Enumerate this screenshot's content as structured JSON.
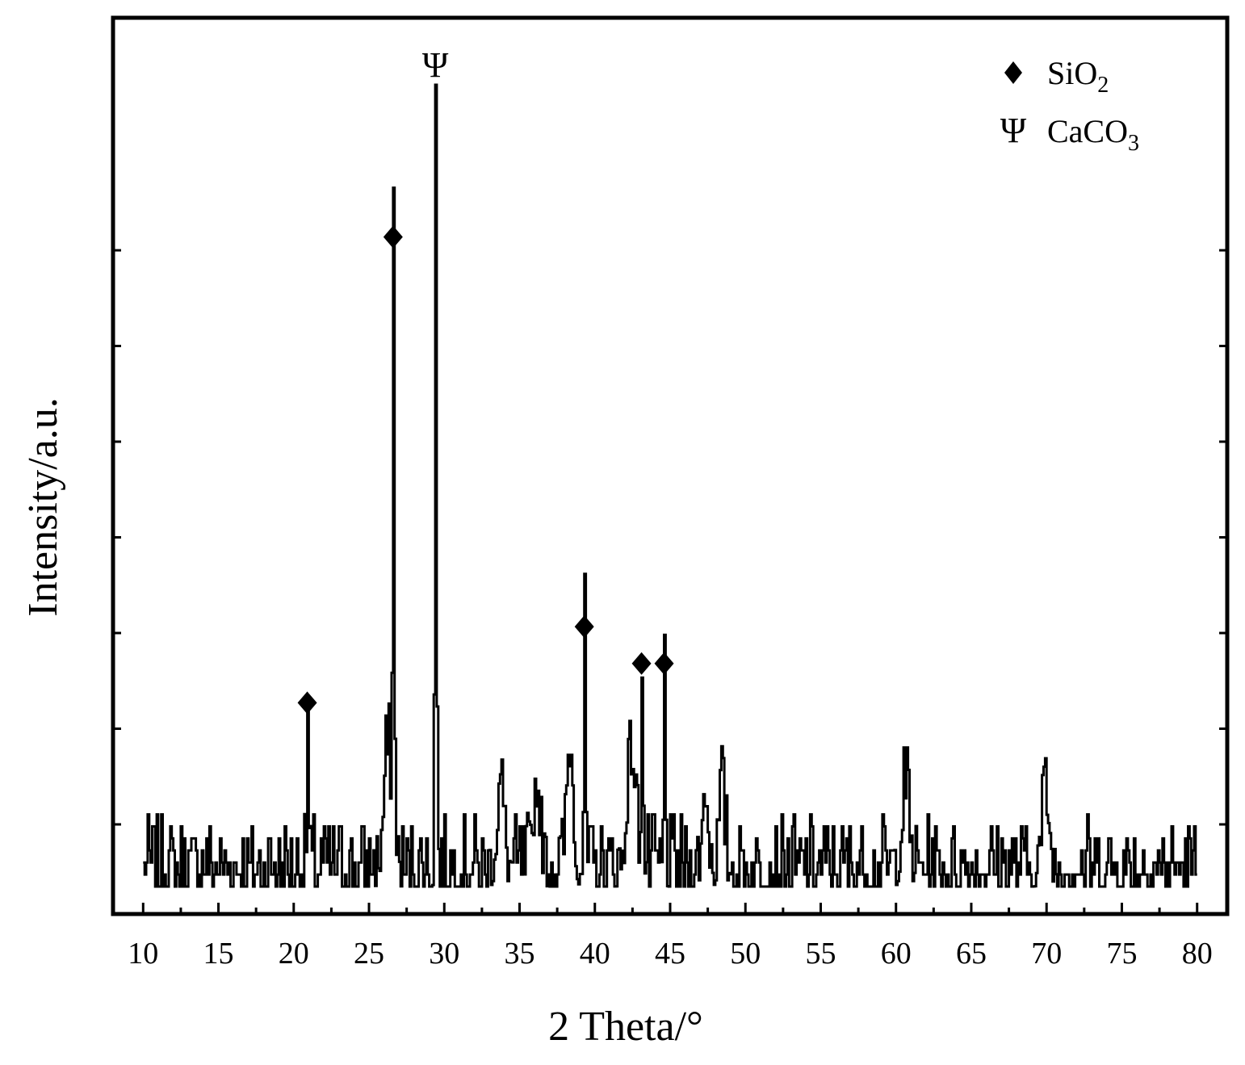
{
  "chart_data": {
    "type": "line",
    "title": "",
    "xlabel": "2 Theta/°",
    "ylabel": "Intensity/a.u.",
    "xlim": [
      8,
      82
    ],
    "ylim": [
      0,
      100
    ],
    "x_ticks": [
      10,
      15,
      20,
      25,
      30,
      35,
      40,
      45,
      50,
      55,
      60,
      65,
      70,
      75,
      80
    ],
    "x_tick_labels": [
      "10",
      "15",
      "20",
      "25",
      "30",
      "35",
      "40",
      "45",
      "50",
      "55",
      "60",
      "65",
      "70",
      "75",
      "80"
    ],
    "y_tick_labels_shown": false,
    "grid": false,
    "legend_position": "top-right",
    "legend": [
      {
        "symbol": "diamond",
        "label": "SiO",
        "subscript": "2"
      },
      {
        "symbol": "psi",
        "label": "CaCO",
        "subscript": "3"
      }
    ],
    "peaks": [
      {
        "x": 20.9,
        "y": 20.5,
        "phase": "SiO2"
      },
      {
        "x": 26.6,
        "y": 78.6,
        "phase": "SiO2"
      },
      {
        "x": 29.4,
        "y": 100,
        "phase": "CaCO3"
      },
      {
        "x": 39.3,
        "y": 30.0,
        "phase": "SiO2"
      },
      {
        "x": 43.1,
        "y": 25.4,
        "phase": "SiO2"
      },
      {
        "x": 44.6,
        "y": 25.4,
        "phase": "SiO2"
      }
    ],
    "peak_marker_symbols": {
      "SiO2": "♦",
      "CaCO3": "Ψ"
    },
    "series": [
      {
        "baseline": 0,
        "noise_amplitude": 9,
        "broad_features": [
          {
            "x": 26.2,
            "y": 15,
            "w": 0.35
          },
          {
            "x": 38.3,
            "y": 15,
            "w": 0.3
          },
          {
            "x": 42.4,
            "y": 14,
            "w": 0.4
          },
          {
            "x": 33.7,
            "y": 11,
            "w": 0.3
          },
          {
            "x": 36.1,
            "y": 10,
            "w": 0.3
          },
          {
            "x": 60.6,
            "y": 11,
            "w": 0.3
          },
          {
            "x": 69.9,
            "y": 10,
            "w": 0.3
          },
          {
            "x": 47.3,
            "y": 10,
            "w": 0.25
          },
          {
            "x": 48.4,
            "y": 10,
            "w": 0.25
          }
        ]
      }
    ]
  }
}
